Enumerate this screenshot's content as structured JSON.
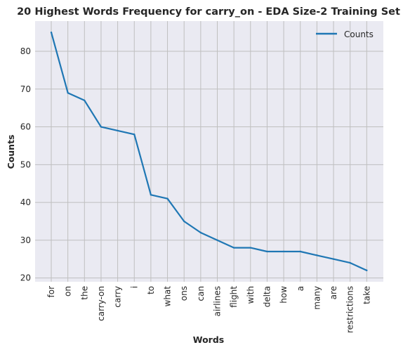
{
  "chart_data": {
    "type": "line",
    "title": "20 Highest Words Frequency for carry_on - EDA Size-2 Training Set",
    "xlabel": "Words",
    "ylabel": "Counts",
    "categories": [
      "for",
      "on",
      "the",
      "carry-on",
      "carry",
      "i",
      "to",
      "what",
      "ons",
      "can",
      "airlines",
      "flight",
      "with",
      "delta",
      "how",
      "a",
      "many",
      "are",
      "restrictions",
      "take"
    ],
    "series": [
      {
        "name": "Counts",
        "color": "#1f77b4",
        "values": [
          85,
          69,
          67,
          60,
          59,
          58,
          42,
          41,
          35,
          32,
          30,
          28,
          28,
          27,
          27,
          27,
          26,
          25,
          24,
          22
        ]
      }
    ],
    "yticks": [
      20,
      30,
      40,
      50,
      60,
      70,
      80
    ],
    "ylim": [
      19,
      88
    ],
    "grid": true,
    "legend_position": "top-right",
    "colors": {
      "plot_bg": "#eaeaf2",
      "grid": "#bfbfbf",
      "line": "#1f77b4"
    }
  }
}
